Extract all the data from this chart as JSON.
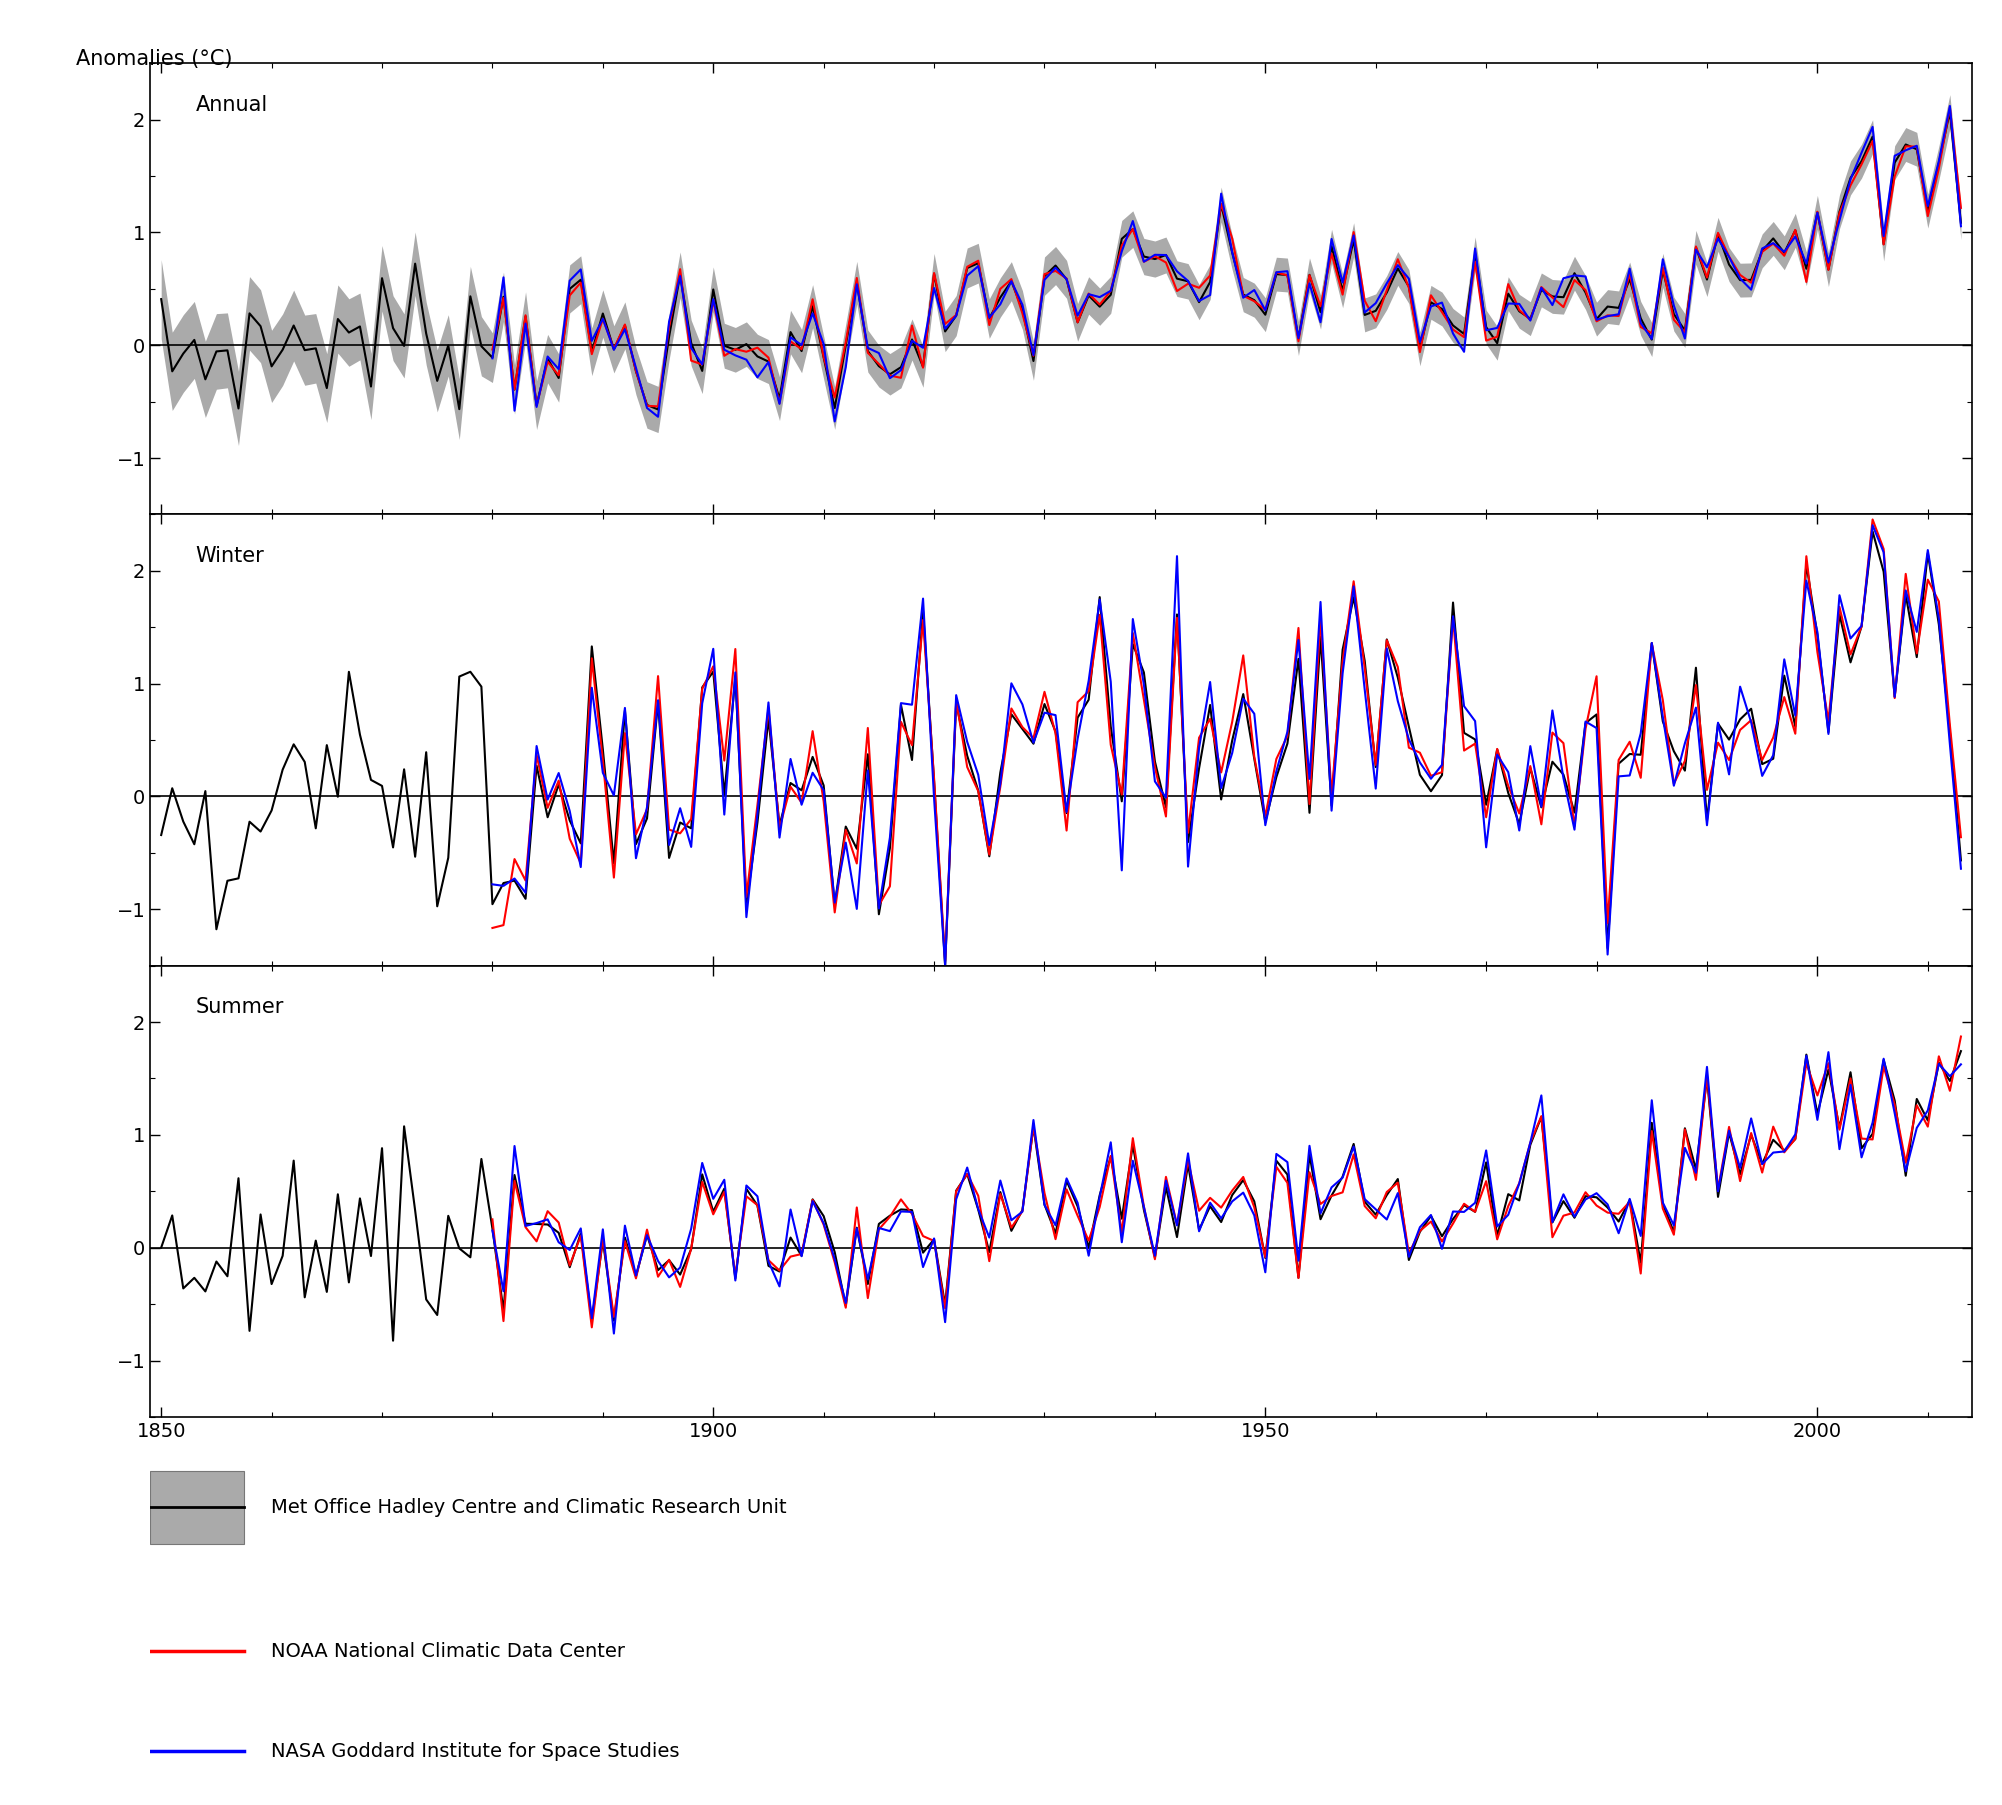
{
  "title_ylabel": "Anomalies (°C)",
  "panel_labels": [
    "Annual",
    "Winter",
    "Summer"
  ],
  "xlim": [
    1849,
    2014
  ],
  "ylim": [
    -1.5,
    2.5
  ],
  "yticks": [
    -1,
    0,
    1,
    2
  ],
  "xticks": [
    1850,
    1900,
    1950,
    2000
  ],
  "legend_entries": [
    "Met Office Hadley Centre and Climatic Research Unit",
    "NOAA National Climatic Data Center",
    "NASA Goddard Institute for Space Studies"
  ],
  "hadley_color": "#000000",
  "hadley_fill_color": "#aaaaaa",
  "noaa_color": "#ff0000",
  "nasa_color": "#0000ff",
  "background_color": "#ffffff",
  "line_width": 1.5,
  "figsize": [
    20.02,
    18.05
  ],
  "dpi": 100
}
